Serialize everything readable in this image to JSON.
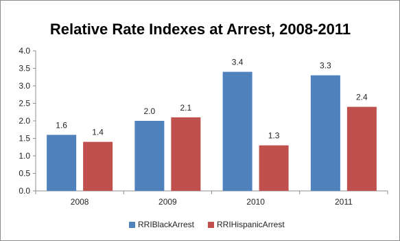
{
  "chart_data": {
    "type": "bar",
    "title": "Relative Rate Indexes at Arrest, 2008-2011",
    "xlabel": "",
    "ylabel": "",
    "categories": [
      "2008",
      "2009",
      "2010",
      "2011"
    ],
    "ylim": [
      0,
      4.0
    ],
    "yticks": [
      "0.0",
      "0.5",
      "1.0",
      "1.5",
      "2.0",
      "2.5",
      "3.0",
      "3.5",
      "4.0"
    ],
    "ytick_values": [
      0,
      0.5,
      1.0,
      1.5,
      2.0,
      2.5,
      3.0,
      3.5,
      4.0
    ],
    "grid": false,
    "legend_position": "bottom",
    "series": [
      {
        "name": "RRIBlackArrest",
        "color": "#4f81bd",
        "values": [
          1.6,
          2.0,
          3.4,
          3.3
        ],
        "labels": [
          "1.6",
          "2.0",
          "3.4",
          "3.3"
        ]
      },
      {
        "name": "RRIHispanicArrest",
        "color": "#c0504d",
        "values": [
          1.4,
          2.1,
          1.3,
          2.4
        ],
        "labels": [
          "1.4",
          "2.1",
          "1.3",
          "2.4"
        ]
      }
    ]
  }
}
